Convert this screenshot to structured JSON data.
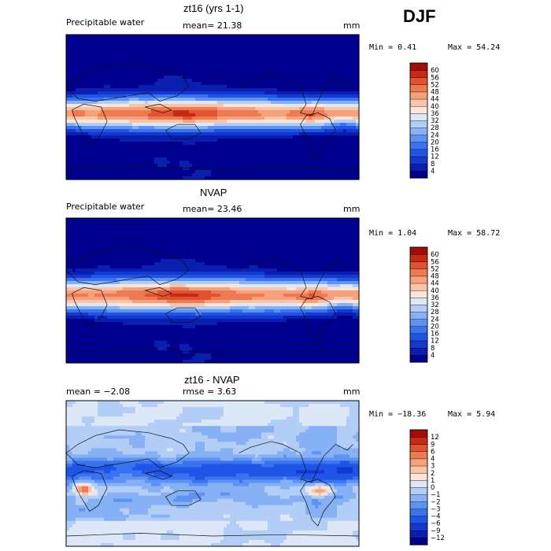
{
  "season": "DJF",
  "chart_data": [
    {
      "type": "heatmap",
      "title": "zt16 (yrs 1-1)",
      "field_label": "Precipitable water",
      "stat_text": "mean=  21.38",
      "unit": "mm",
      "min_text": "Min =   0.41",
      "max_text": "Max =  54.24",
      "stats": {
        "mean": 21.38,
        "min": 0.41,
        "max": 54.24
      },
      "colorbar": {
        "levels": [
          4,
          8,
          12,
          16,
          20,
          24,
          28,
          32,
          36,
          40,
          44,
          48,
          52,
          56,
          60
        ],
        "colors": [
          "#00008f",
          "#0a1fb0",
          "#1339d0",
          "#1f55e6",
          "#3a73f0",
          "#5d93f2",
          "#86b2f5",
          "#b2cef7",
          "#dce8f8",
          "#fde5d8",
          "#fbc4a7",
          "#f6a07c",
          "#ee7a52",
          "#e0532e",
          "#c62a14",
          "#a30d05"
        ]
      },
      "map_model": "model"
    },
    {
      "type": "heatmap",
      "title": "NVAP",
      "field_label": "Precipitable water",
      "stat_text": "mean=  23.46",
      "unit": "mm",
      "min_text": "Min =   1.04",
      "max_text": "Max =  58.72",
      "stats": {
        "mean": 23.46,
        "min": 1.04,
        "max": 58.72
      },
      "colorbar": {
        "levels": [
          4,
          8,
          12,
          16,
          20,
          24,
          28,
          32,
          36,
          40,
          44,
          48,
          52,
          56,
          60
        ],
        "colors": [
          "#00008f",
          "#0a1fb0",
          "#1339d0",
          "#1f55e6",
          "#3a73f0",
          "#5d93f2",
          "#86b2f5",
          "#b2cef7",
          "#dce8f8",
          "#fde5d8",
          "#fbc4a7",
          "#f6a07c",
          "#ee7a52",
          "#e0532e",
          "#c62a14",
          "#a30d05"
        ]
      },
      "map_model": "obs"
    },
    {
      "type": "heatmap",
      "title": "zt16 - NVAP",
      "field_label": "mean =  −2.08",
      "stat_text": "rmse =    3.63",
      "unit": "mm",
      "min_text": "Min = −18.36",
      "max_text": "Max =    5.94",
      "stats": {
        "mean": -2.08,
        "rmse": 3.63,
        "min": -18.36,
        "max": 5.94
      },
      "colorbar": {
        "levels": [
          -12,
          -9,
          -6,
          -4,
          -3,
          -2,
          -1,
          0,
          1,
          2,
          3,
          4,
          6,
          9,
          12
        ],
        "level_labels": [
          "−12",
          "−9",
          "−6",
          "−4",
          "−3",
          "−2",
          "−1",
          "0",
          "1",
          "2",
          "3",
          "4",
          "6",
          "9",
          "12"
        ],
        "colors": [
          "#00008f",
          "#0a1fb0",
          "#1339d0",
          "#1f55e6",
          "#3a73f0",
          "#5d93f2",
          "#86b2f5",
          "#b2cef7",
          "#dce8f8",
          "#fde5d8",
          "#fbc4a7",
          "#f6a07c",
          "#ee7a52",
          "#e0532e",
          "#c62a14",
          "#a30d05"
        ]
      },
      "map_model": "diff"
    }
  ]
}
